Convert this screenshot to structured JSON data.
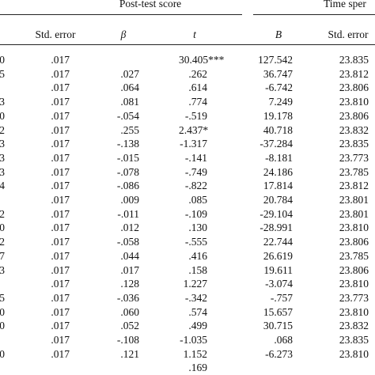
{
  "table": {
    "group_headers": [
      "Post-test score",
      "Time sper"
    ],
    "columns": [
      "Std. error",
      "β",
      "t",
      "B",
      "Std. error"
    ],
    "rows": [
      [
        "0",
        ".017",
        "",
        "30.405***",
        "127.542",
        "23.835"
      ],
      [
        "5",
        ".017",
        ".027",
        ".262",
        "36.747",
        "23.812"
      ],
      [
        "",
        ".017",
        ".064",
        ".614",
        "-6.742",
        "23.806"
      ],
      [
        "3",
        ".017",
        ".081",
        ".774",
        "7.249",
        "23.810"
      ],
      [
        "0",
        ".017",
        "-.054",
        "-.519",
        "19.178",
        "23.806"
      ],
      [
        "2",
        ".017",
        ".255",
        "2.437*",
        "40.718",
        "23.832"
      ],
      [
        "3",
        ".017",
        "-.138",
        "-1.317",
        "-37.284",
        "23.835"
      ],
      [
        "3",
        ".017",
        "-.015",
        "-.141",
        "-8.181",
        "23.773"
      ],
      [
        "3",
        ".017",
        "-.078",
        "-.749",
        "24.186",
        "23.785"
      ],
      [
        "4",
        ".017",
        "-.086",
        "-.822",
        "17.814",
        "23.812"
      ],
      [
        "",
        ".017",
        ".009",
        ".085",
        "20.784",
        "23.801"
      ],
      [
        "2",
        ".017",
        "-.011",
        "-.109",
        "-29.104",
        "23.801"
      ],
      [
        "0",
        ".017",
        ".012",
        ".130",
        "-28.991",
        "23.810"
      ],
      [
        "2",
        ".017",
        "-.058",
        "-.555",
        "22.744",
        "23.806"
      ],
      [
        "7",
        ".017",
        ".044",
        ".416",
        "26.619",
        "23.785"
      ],
      [
        "3",
        ".017",
        ".017",
        ".158",
        "19.611",
        "23.806"
      ],
      [
        "",
        ".017",
        ".128",
        "1.227",
        "-3.074",
        "23.810"
      ],
      [
        "5",
        ".017",
        "-.036",
        "-.342",
        "-.757",
        "23.773"
      ],
      [
        "0",
        ".017",
        ".060",
        ".574",
        "15.657",
        "23.810"
      ],
      [
        "0",
        ".017",
        ".052",
        ".499",
        "30.715",
        "23.832"
      ],
      [
        "",
        ".017",
        "-.108",
        "-1.035",
        ".068",
        "23.835"
      ],
      [
        "0",
        ".017",
        ".121",
        "1.152",
        "-6.273",
        "23.810"
      ],
      [
        "",
        "",
        "",
        ".169",
        "",
        ""
      ]
    ]
  }
}
